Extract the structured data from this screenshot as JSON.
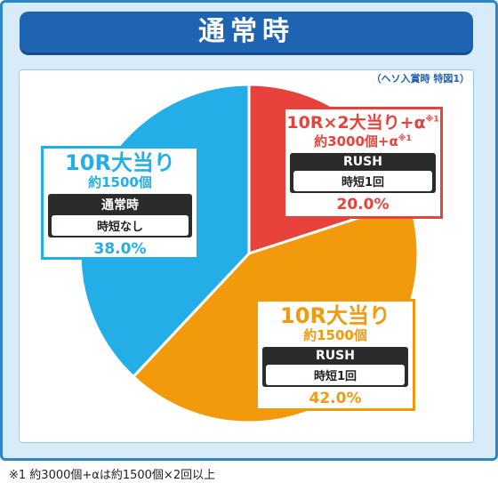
{
  "title": "通常時",
  "source_note": "（ヘソ入賞時 特図1）",
  "footnote": "※1 約3000個+αは約1500個×2回以上",
  "colors": {
    "red": "#e8423c",
    "orange": "#f29a0c",
    "blue": "#23aee8",
    "title": "#1f63b3"
  },
  "chart_data": {
    "type": "pie",
    "start_angle_deg": 0,
    "slices": [
      {
        "label": "10R×2大当り+α",
        "label_note": "※1",
        "sub": "約3000個+α",
        "sub_note": "※1",
        "mode": "RUSH",
        "detail": "時短1回",
        "value": 20.0,
        "pct_text": "20.0%",
        "color": "#e8423c"
      },
      {
        "label": "10R大当り",
        "sub": "約1500個",
        "mode": "RUSH",
        "detail": "時短1回",
        "value": 42.0,
        "pct_text": "42.0%",
        "color": "#f29a0c"
      },
      {
        "label": "10R大当り",
        "sub": "約1500個",
        "mode": "通常時",
        "detail": "時短なし",
        "value": 38.0,
        "pct_text": "38.0%",
        "color": "#23aee8"
      }
    ]
  }
}
